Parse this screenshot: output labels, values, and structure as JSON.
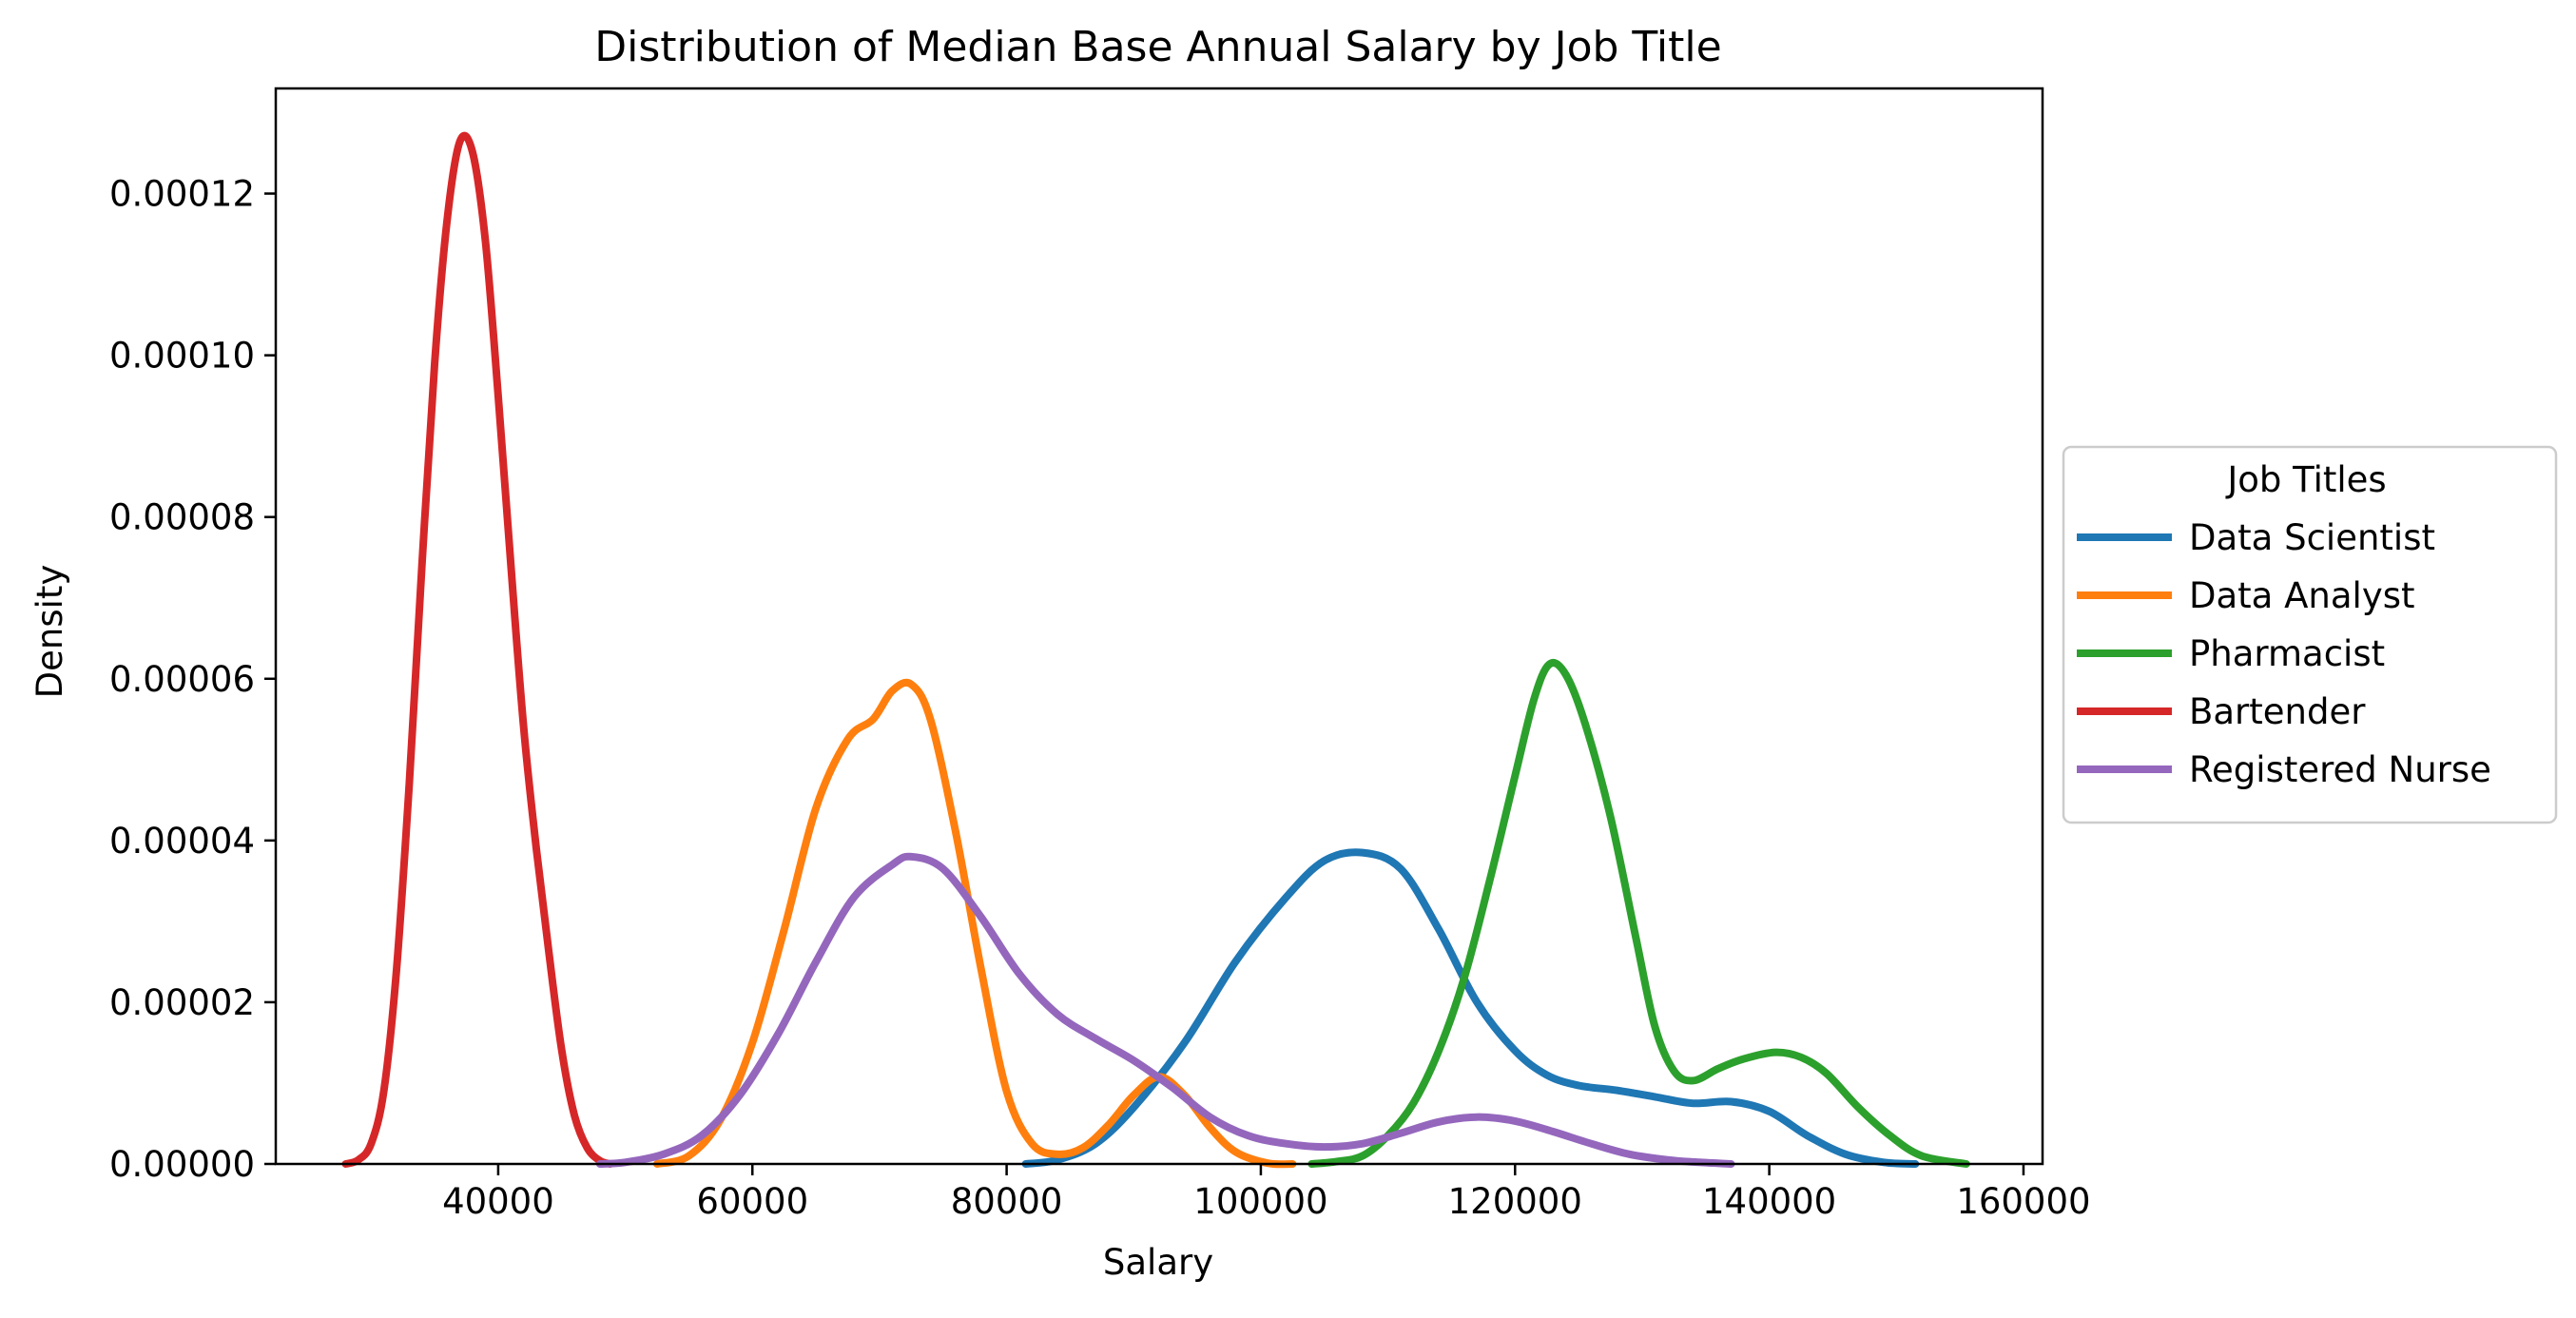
{
  "chart_data": {
    "type": "line",
    "title": "Distribution of Median Base Annual Salary by Job Title",
    "xlabel": "Salary",
    "ylabel": "Density",
    "xlim": [
      22500,
      161500
    ],
    "ylim": [
      0,
      0.000133
    ],
    "xticks": [
      40000,
      60000,
      80000,
      100000,
      120000,
      140000,
      160000
    ],
    "xtick_labels": [
      "40000",
      "60000",
      "80000",
      "100000",
      "120000",
      "140000",
      "160000"
    ],
    "yticks": [
      0,
      2e-05,
      4e-05,
      6e-05,
      8e-05,
      0.0001,
      0.00012
    ],
    "ytick_labels": [
      "0.00000",
      "0.00002",
      "0.00004",
      "0.00006",
      "0.00008",
      "0.00010",
      "0.00012"
    ],
    "grid": false,
    "legend": {
      "title": "Job Titles",
      "placement": "center right, outside plot"
    },
    "series": [
      {
        "name": "Data Scientist",
        "color": "#1f77b4",
        "points": [
          [
            81500,
            0
          ],
          [
            84000,
            5e-07
          ],
          [
            87000,
            2.5e-06
          ],
          [
            90000,
            7e-06
          ],
          [
            94000,
            1.5e-05
          ],
          [
            98000,
            2.5e-05
          ],
          [
            102000,
            3.3e-05
          ],
          [
            105000,
            3.75e-05
          ],
          [
            108000,
            3.85e-05
          ],
          [
            111000,
            3.65e-05
          ],
          [
            114000,
            2.9e-05
          ],
          [
            117000,
            2e-05
          ],
          [
            120000,
            1.4e-05
          ],
          [
            122500,
            1.1e-05
          ],
          [
            125000,
            9.7e-06
          ],
          [
            128000,
            9.1e-06
          ],
          [
            131000,
            8.3e-06
          ],
          [
            134000,
            7.5e-06
          ],
          [
            137000,
            7.7e-06
          ],
          [
            140000,
            6.5e-06
          ],
          [
            143000,
            3.5e-06
          ],
          [
            146000,
            1.2e-06
          ],
          [
            149000,
            2e-07
          ],
          [
            151500,
            0
          ]
        ]
      },
      {
        "name": "Data Analyst",
        "color": "#ff7f0e",
        "points": [
          [
            52500,
            0
          ],
          [
            55000,
            1e-06
          ],
          [
            57500,
            5.5e-06
          ],
          [
            60000,
            1.5e-05
          ],
          [
            62500,
            2.9e-05
          ],
          [
            65000,
            4.4e-05
          ],
          [
            67500,
            5.25e-05
          ],
          [
            69500,
            5.5e-05
          ],
          [
            71000,
            5.85e-05
          ],
          [
            72500,
            5.93e-05
          ],
          [
            74000,
            5.5e-05
          ],
          [
            76000,
            4.1e-05
          ],
          [
            78000,
            2.4e-05
          ],
          [
            80000,
            9e-06
          ],
          [
            82000,
            2.5e-06
          ],
          [
            84000,
            1.2e-06
          ],
          [
            86000,
            2e-06
          ],
          [
            88000,
            4.8e-06
          ],
          [
            90000,
            8.5e-06
          ],
          [
            92000,
            1.08e-05
          ],
          [
            94000,
            8.5e-06
          ],
          [
            96000,
            4.5e-06
          ],
          [
            98000,
            1.5e-06
          ],
          [
            100500,
            1e-07
          ],
          [
            102500,
            0
          ]
        ]
      },
      {
        "name": "Pharmacist",
        "color": "#2ca02c",
        "points": [
          [
            104000,
            0
          ],
          [
            106000,
            3e-07
          ],
          [
            108000,
            1e-06
          ],
          [
            110000,
            3.5e-06
          ],
          [
            112000,
            7.5e-06
          ],
          [
            114000,
            1.4e-05
          ],
          [
            116000,
            2.3e-05
          ],
          [
            118000,
            3.5e-05
          ],
          [
            120000,
            4.8e-05
          ],
          [
            121500,
            5.75e-05
          ],
          [
            122700,
            6.18e-05
          ],
          [
            124000,
            6.05e-05
          ],
          [
            125500,
            5.45e-05
          ],
          [
            127500,
            4.3e-05
          ],
          [
            129500,
            2.8e-05
          ],
          [
            131000,
            1.7e-05
          ],
          [
            132500,
            1.15e-05
          ],
          [
            134000,
            1.03e-05
          ],
          [
            136000,
            1.18e-05
          ],
          [
            138000,
            1.3e-05
          ],
          [
            140500,
            1.38e-05
          ],
          [
            142500,
            1.32e-05
          ],
          [
            144500,
            1.12e-05
          ],
          [
            147000,
            7e-06
          ],
          [
            149500,
            3.5e-06
          ],
          [
            152000,
            1e-06
          ],
          [
            155500,
            0
          ]
        ]
      },
      {
        "name": "Bartender",
        "color": "#d62728",
        "points": [
          [
            28000,
            0
          ],
          [
            29000,
            5e-07
          ],
          [
            30000,
            2.5e-06
          ],
          [
            31000,
            9e-06
          ],
          [
            32000,
            2.4e-05
          ],
          [
            33000,
            4.7e-05
          ],
          [
            34000,
            7.4e-05
          ],
          [
            35000,
            9.9e-05
          ],
          [
            36000,
            0.000117
          ],
          [
            37000,
            0.0001265
          ],
          [
            38000,
            0.000125
          ],
          [
            39000,
            0.000114
          ],
          [
            40000,
            9.5e-05
          ],
          [
            41000,
            7.4e-05
          ],
          [
            42000,
            5.4e-05
          ],
          [
            43000,
            3.9e-05
          ],
          [
            44000,
            2.6e-05
          ],
          [
            45000,
            1.4e-05
          ],
          [
            46000,
            6e-06
          ],
          [
            47000,
            2e-06
          ],
          [
            48000,
            4e-07
          ],
          [
            48800,
            0
          ]
        ]
      },
      {
        "name": "Registered Nurse",
        "color": "#9467bd",
        "points": [
          [
            48000,
            0
          ],
          [
            50000,
            2e-07
          ],
          [
            53000,
            1.2e-06
          ],
          [
            56000,
            3.5e-06
          ],
          [
            59000,
            8.5e-06
          ],
          [
            62000,
            1.6e-05
          ],
          [
            65000,
            2.5e-05
          ],
          [
            68000,
            3.3e-05
          ],
          [
            71000,
            3.7e-05
          ],
          [
            72500,
            3.8e-05
          ],
          [
            75000,
            3.65e-05
          ],
          [
            78000,
            3.05e-05
          ],
          [
            81000,
            2.35e-05
          ],
          [
            84000,
            1.85e-05
          ],
          [
            87000,
            1.55e-05
          ],
          [
            90000,
            1.28e-05
          ],
          [
            93000,
            9.5e-06
          ],
          [
            96000,
            5.8e-06
          ],
          [
            99000,
            3.5e-06
          ],
          [
            102000,
            2.5e-06
          ],
          [
            105000,
            2.1e-06
          ],
          [
            108000,
            2.5e-06
          ],
          [
            111000,
            3.8e-06
          ],
          [
            114000,
            5.2e-06
          ],
          [
            117000,
            5.8e-06
          ],
          [
            120000,
            5.3e-06
          ],
          [
            123000,
            4e-06
          ],
          [
            126000,
            2.5e-06
          ],
          [
            129000,
            1.2e-06
          ],
          [
            132000,
            5e-07
          ],
          [
            134500,
            2e-07
          ],
          [
            137000,
            0
          ]
        ]
      }
    ]
  }
}
